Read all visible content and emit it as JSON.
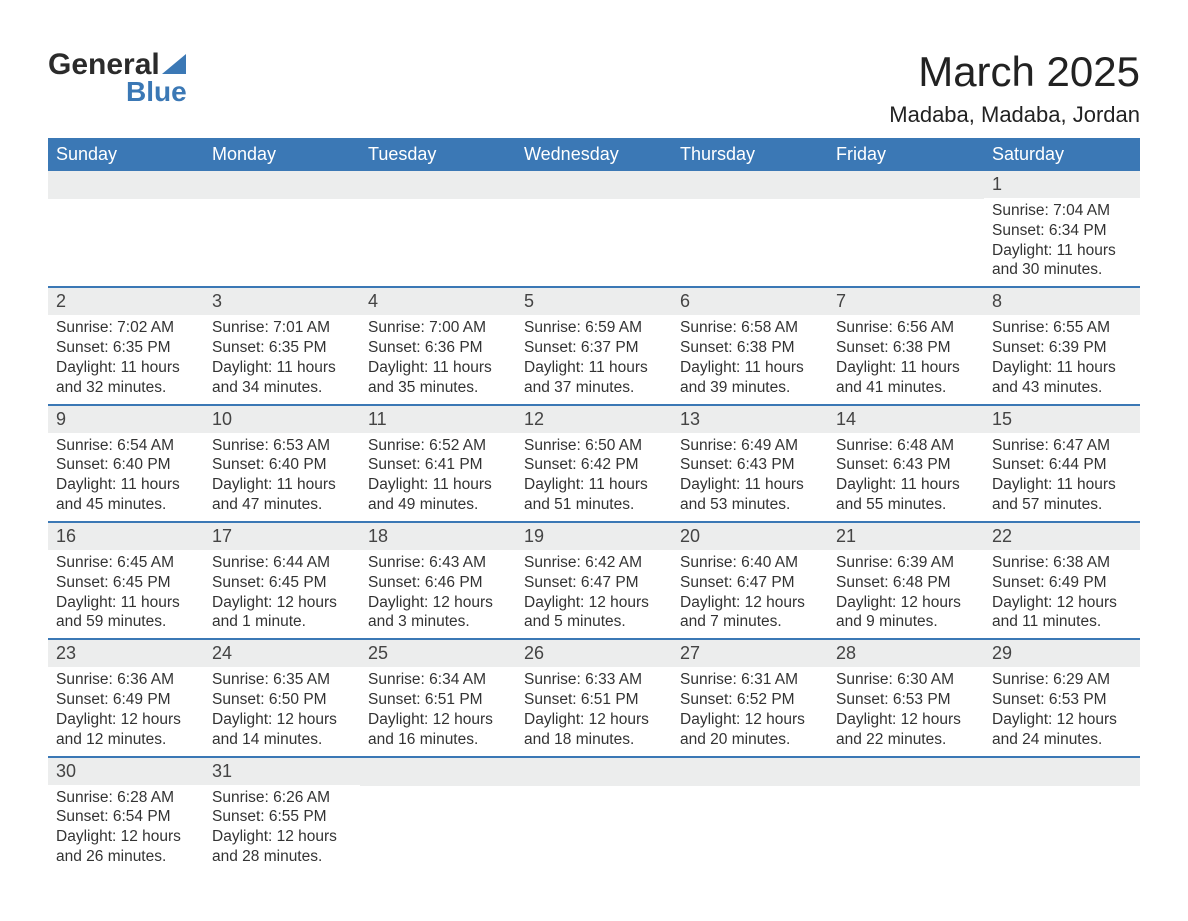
{
  "logo": {
    "word1": "General",
    "word2": "Blue"
  },
  "title": "March 2025",
  "location": "Madaba, Madaba, Jordan",
  "day_names": [
    "Sunday",
    "Monday",
    "Tuesday",
    "Wednesday",
    "Thursday",
    "Friday",
    "Saturday"
  ],
  "colors": {
    "header_bg": "#3b78b5",
    "header_text": "#ffffff",
    "daynum_bg": "#eceded",
    "row_border": "#3b78b5",
    "text": "#333333",
    "title_text": "#222222"
  },
  "typography": {
    "title_fontsize": 42,
    "location_fontsize": 22,
    "dayheader_fontsize": 18,
    "daynum_fontsize": 18,
    "info_fontsize": 15.5
  },
  "labels": {
    "sunrise": "Sunrise:",
    "sunset": "Sunset:",
    "daylight": "Daylight:"
  },
  "weeks": [
    [
      {
        "blank": true
      },
      {
        "blank": true
      },
      {
        "blank": true
      },
      {
        "blank": true
      },
      {
        "blank": true
      },
      {
        "blank": true
      },
      {
        "n": "1",
        "sunrise": "7:04 AM",
        "sunset": "6:34 PM",
        "daylight": "11 hours and 30 minutes."
      }
    ],
    [
      {
        "n": "2",
        "sunrise": "7:02 AM",
        "sunset": "6:35 PM",
        "daylight": "11 hours and 32 minutes."
      },
      {
        "n": "3",
        "sunrise": "7:01 AM",
        "sunset": "6:35 PM",
        "daylight": "11 hours and 34 minutes."
      },
      {
        "n": "4",
        "sunrise": "7:00 AM",
        "sunset": "6:36 PM",
        "daylight": "11 hours and 35 minutes."
      },
      {
        "n": "5",
        "sunrise": "6:59 AM",
        "sunset": "6:37 PM",
        "daylight": "11 hours and 37 minutes."
      },
      {
        "n": "6",
        "sunrise": "6:58 AM",
        "sunset": "6:38 PM",
        "daylight": "11 hours and 39 minutes."
      },
      {
        "n": "7",
        "sunrise": "6:56 AM",
        "sunset": "6:38 PM",
        "daylight": "11 hours and 41 minutes."
      },
      {
        "n": "8",
        "sunrise": "6:55 AM",
        "sunset": "6:39 PM",
        "daylight": "11 hours and 43 minutes."
      }
    ],
    [
      {
        "n": "9",
        "sunrise": "6:54 AM",
        "sunset": "6:40 PM",
        "daylight": "11 hours and 45 minutes."
      },
      {
        "n": "10",
        "sunrise": "6:53 AM",
        "sunset": "6:40 PM",
        "daylight": "11 hours and 47 minutes."
      },
      {
        "n": "11",
        "sunrise": "6:52 AM",
        "sunset": "6:41 PM",
        "daylight": "11 hours and 49 minutes."
      },
      {
        "n": "12",
        "sunrise": "6:50 AM",
        "sunset": "6:42 PM",
        "daylight": "11 hours and 51 minutes."
      },
      {
        "n": "13",
        "sunrise": "6:49 AM",
        "sunset": "6:43 PM",
        "daylight": "11 hours and 53 minutes."
      },
      {
        "n": "14",
        "sunrise": "6:48 AM",
        "sunset": "6:43 PM",
        "daylight": "11 hours and 55 minutes."
      },
      {
        "n": "15",
        "sunrise": "6:47 AM",
        "sunset": "6:44 PM",
        "daylight": "11 hours and 57 minutes."
      }
    ],
    [
      {
        "n": "16",
        "sunrise": "6:45 AM",
        "sunset": "6:45 PM",
        "daylight": "11 hours and 59 minutes."
      },
      {
        "n": "17",
        "sunrise": "6:44 AM",
        "sunset": "6:45 PM",
        "daylight": "12 hours and 1 minute."
      },
      {
        "n": "18",
        "sunrise": "6:43 AM",
        "sunset": "6:46 PM",
        "daylight": "12 hours and 3 minutes."
      },
      {
        "n": "19",
        "sunrise": "6:42 AM",
        "sunset": "6:47 PM",
        "daylight": "12 hours and 5 minutes."
      },
      {
        "n": "20",
        "sunrise": "6:40 AM",
        "sunset": "6:47 PM",
        "daylight": "12 hours and 7 minutes."
      },
      {
        "n": "21",
        "sunrise": "6:39 AM",
        "sunset": "6:48 PM",
        "daylight": "12 hours and 9 minutes."
      },
      {
        "n": "22",
        "sunrise": "6:38 AM",
        "sunset": "6:49 PM",
        "daylight": "12 hours and 11 minutes."
      }
    ],
    [
      {
        "n": "23",
        "sunrise": "6:36 AM",
        "sunset": "6:49 PM",
        "daylight": "12 hours and 12 minutes."
      },
      {
        "n": "24",
        "sunrise": "6:35 AM",
        "sunset": "6:50 PM",
        "daylight": "12 hours and 14 minutes."
      },
      {
        "n": "25",
        "sunrise": "6:34 AM",
        "sunset": "6:51 PM",
        "daylight": "12 hours and 16 minutes."
      },
      {
        "n": "26",
        "sunrise": "6:33 AM",
        "sunset": "6:51 PM",
        "daylight": "12 hours and 18 minutes."
      },
      {
        "n": "27",
        "sunrise": "6:31 AM",
        "sunset": "6:52 PM",
        "daylight": "12 hours and 20 minutes."
      },
      {
        "n": "28",
        "sunrise": "6:30 AM",
        "sunset": "6:53 PM",
        "daylight": "12 hours and 22 minutes."
      },
      {
        "n": "29",
        "sunrise": "6:29 AM",
        "sunset": "6:53 PM",
        "daylight": "12 hours and 24 minutes."
      }
    ],
    [
      {
        "n": "30",
        "sunrise": "6:28 AM",
        "sunset": "6:54 PM",
        "daylight": "12 hours and 26 minutes."
      },
      {
        "n": "31",
        "sunrise": "6:26 AM",
        "sunset": "6:55 PM",
        "daylight": "12 hours and 28 minutes."
      },
      {
        "blank": true
      },
      {
        "blank": true
      },
      {
        "blank": true
      },
      {
        "blank": true
      },
      {
        "blank": true
      }
    ]
  ]
}
